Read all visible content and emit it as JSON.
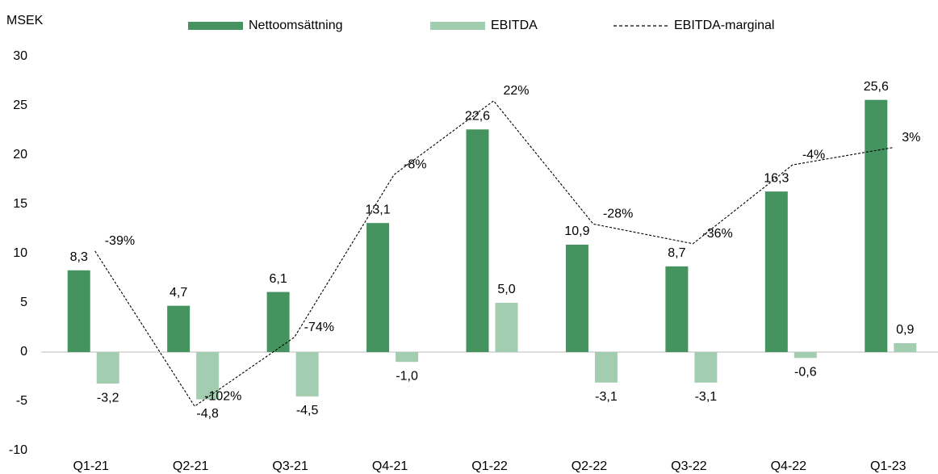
{
  "chart_data": {
    "type": "bar_line",
    "y_label": "MSEK",
    "categories": [
      "Q1-21",
      "Q2-21",
      "Q3-21",
      "Q4-21",
      "Q1-22",
      "Q2-22",
      "Q3-22",
      "Q4-22",
      "Q1-23"
    ],
    "series": [
      {
        "name": "Nettoomsättning",
        "type": "bar",
        "color": "#45935f",
        "values": [
          8.3,
          4.7,
          6.1,
          13.1,
          22.6,
          10.9,
          8.7,
          16.3,
          25.6
        ],
        "value_labels": [
          "8,3",
          "4,7",
          "6,1",
          "13,1",
          "22,6",
          "10,9",
          "8,7",
          "16,3",
          "25,6"
        ]
      },
      {
        "name": "EBITDA",
        "type": "bar",
        "color": "#a3cdb1",
        "values": [
          -3.2,
          -4.8,
          -4.5,
          -1.0,
          5.0,
          -3.1,
          -3.1,
          -0.6,
          0.9
        ],
        "value_labels": [
          "-3,2",
          "-4,8",
          "-4,5",
          "-1,0",
          "5,0",
          "-3,1",
          "-3,1",
          "-0,6",
          "0,9"
        ]
      },
      {
        "name": "EBITDA-marginal",
        "type": "line",
        "axis": "y2",
        "color": "#000000",
        "dashed": true,
        "values": [
          -39,
          -102,
          -74,
          -8,
          22,
          -28,
          -36,
          -4,
          3
        ],
        "value_labels": [
          "-39%",
          "-102%",
          "-74%",
          "-8%",
          "22%",
          "-28%",
          "-36%",
          "-4%",
          "3%"
        ]
      }
    ],
    "ylim": [
      -10,
      30
    ],
    "yticks": [
      -10,
      -5,
      0,
      5,
      10,
      15,
      20,
      25,
      30
    ],
    "y2lim": [
      -120,
      40
    ],
    "legend": "top"
  }
}
